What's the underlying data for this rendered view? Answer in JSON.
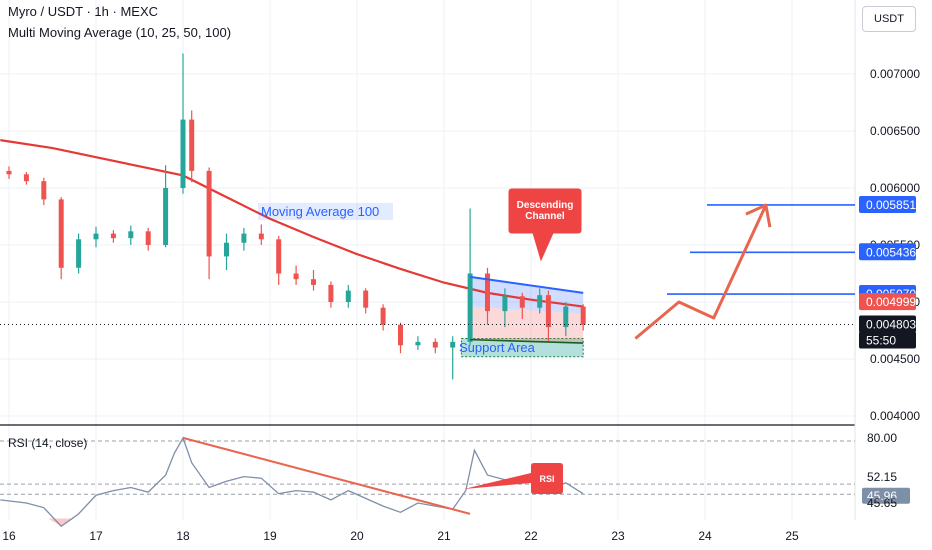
{
  "header": {
    "title": "Myro / USDT · 1h · MEXC",
    "indicator": "Multi Moving Average (10, 25, 50, 100)"
  },
  "currency_button": "USDT",
  "rsi_pane": {
    "label": "RSI (14, close)"
  },
  "colors": {
    "up": "#26a69a",
    "down": "#ef5350",
    "ma": "#e53935",
    "blue": "#2962ff",
    "arrow": "#e8664f",
    "rsi": "#7e8fa8"
  },
  "chart_data": {
    "type": "candlestick",
    "price_axis": {
      "ticks": [
        "0.004000",
        "0.004500",
        "0.005000",
        "0.005500",
        "0.006000",
        "0.006500",
        "0.007000"
      ]
    },
    "x_ticks": [
      "16",
      "17",
      "18",
      "19",
      "20",
      "21",
      "22",
      "23",
      "24",
      "25"
    ],
    "price_labels": [
      {
        "text": "0.005851",
        "value": 0.005851,
        "style": "blue"
      },
      {
        "text": "0.005436",
        "value": 0.005436,
        "style": "blue"
      },
      {
        "text": "0.005070",
        "value": 0.00507,
        "style": "blue"
      },
      {
        "text": "0.004999",
        "value": 0.004999,
        "style": "red"
      },
      {
        "text": "0.004803",
        "value": 0.004803,
        "style": "dark"
      },
      {
        "text": "55:50",
        "value": 0.004718,
        "style": "dark"
      }
    ],
    "horizontal_levels": [
      0.005851,
      0.005436,
      0.00507
    ],
    "annotations": {
      "ma_label": "Moving Average 100",
      "channel_label": "Descending\nChannel",
      "support_label": "Support Area",
      "rsi_tag": "RSI"
    },
    "ma100": [
      [
        15.9,
        0.00642
      ],
      [
        16.5,
        0.00635
      ],
      [
        17.0,
        0.00627
      ],
      [
        17.5,
        0.00619
      ],
      [
        18.0,
        0.00611
      ],
      [
        18.5,
        0.00592
      ],
      [
        19.0,
        0.00573
      ],
      [
        19.5,
        0.00557
      ],
      [
        20.0,
        0.00542
      ],
      [
        20.5,
        0.00529
      ],
      [
        21.0,
        0.00517
      ],
      [
        21.5,
        0.00508
      ],
      [
        22.0,
        0.00502
      ],
      [
        22.6,
        0.00496
      ]
    ],
    "candles_ohlc_by_day": [
      [
        16.0,
        0.00615,
        0.00619,
        0.00608,
        0.00612
      ],
      [
        16.2,
        0.00612,
        0.00614,
        0.00603,
        0.00606
      ],
      [
        16.4,
        0.00606,
        0.00609,
        0.00585,
        0.0059
      ],
      [
        16.6,
        0.0059,
        0.00592,
        0.0052,
        0.0053
      ],
      [
        16.8,
        0.0053,
        0.0056,
        0.00525,
        0.00555
      ],
      [
        17.0,
        0.00555,
        0.00566,
        0.00548,
        0.0056
      ],
      [
        17.2,
        0.0056,
        0.00563,
        0.00552,
        0.00556
      ],
      [
        17.4,
        0.00556,
        0.00567,
        0.0055,
        0.00562
      ],
      [
        17.6,
        0.00562,
        0.00565,
        0.00545,
        0.0055
      ],
      [
        17.8,
        0.0055,
        0.0062,
        0.00548,
        0.006
      ],
      [
        18.0,
        0.006,
        0.00718,
        0.00595,
        0.0066
      ],
      [
        18.1,
        0.0066,
        0.00668,
        0.00605,
        0.00615
      ],
      [
        18.3,
        0.00615,
        0.00618,
        0.0052,
        0.0054
      ],
      [
        18.5,
        0.0054,
        0.0056,
        0.00528,
        0.00552
      ],
      [
        18.7,
        0.00552,
        0.00565,
        0.00545,
        0.0056
      ],
      [
        18.9,
        0.0056,
        0.00568,
        0.0055,
        0.00555
      ],
      [
        19.1,
        0.00555,
        0.00558,
        0.00515,
        0.00525
      ],
      [
        19.3,
        0.00525,
        0.00532,
        0.00515,
        0.0052
      ],
      [
        19.5,
        0.0052,
        0.00528,
        0.0051,
        0.00515
      ],
      [
        19.7,
        0.00515,
        0.00518,
        0.00495,
        0.005
      ],
      [
        19.9,
        0.005,
        0.00515,
        0.00495,
        0.0051
      ],
      [
        20.1,
        0.0051,
        0.00512,
        0.0049,
        0.00495
      ],
      [
        20.3,
        0.00495,
        0.00498,
        0.00475,
        0.0048
      ],
      [
        20.5,
        0.0048,
        0.00482,
        0.00455,
        0.00462
      ],
      [
        20.7,
        0.00462,
        0.0047,
        0.00458,
        0.00465
      ],
      [
        20.9,
        0.00465,
        0.00468,
        0.00455,
        0.0046
      ],
      [
        21.1,
        0.0046,
        0.0047,
        0.00432,
        0.00465
      ],
      [
        21.3,
        0.00465,
        0.00582,
        0.00462,
        0.00525
      ],
      [
        21.5,
        0.00525,
        0.0053,
        0.0048,
        0.00492
      ],
      [
        21.7,
        0.00492,
        0.00512,
        0.00478,
        0.00505
      ],
      [
        21.9,
        0.00505,
        0.00508,
        0.00485,
        0.00495
      ],
      [
        22.1,
        0.00495,
        0.00512,
        0.0049,
        0.00506
      ],
      [
        22.2,
        0.00506,
        0.0051,
        0.00465,
        0.00478
      ],
      [
        22.4,
        0.00478,
        0.005,
        0.0047,
        0.00496
      ],
      [
        22.6,
        0.00496,
        0.00498,
        0.00475,
        0.0048
      ]
    ],
    "descending_channel": {
      "upper": [
        [
          21.3,
          0.00522
        ],
        [
          22.6,
          0.00508
        ]
      ],
      "lower": [
        [
          21.3,
          0.00467
        ],
        [
          22.6,
          0.00464
        ]
      ]
    },
    "support_area": {
      "x": [
        21.2,
        22.6
      ],
      "y": [
        0.00452,
        0.00468
      ]
    },
    "projection_path": [
      [
        23.2,
        0.00468
      ],
      [
        23.7,
        0.005
      ],
      [
        24.1,
        0.00486
      ],
      [
        24.7,
        0.00585
      ]
    ],
    "rsi": {
      "ticks": [
        "80.00",
        "52.15",
        "45.96",
        "45.65"
      ],
      "levels": [
        80.0,
        52.15,
        45.65
      ],
      "value": 45.96,
      "series": [
        [
          15.9,
          42
        ],
        [
          16.2,
          40
        ],
        [
          16.4,
          37
        ],
        [
          16.6,
          25
        ],
        [
          16.8,
          33
        ],
        [
          17.0,
          45
        ],
        [
          17.2,
          48
        ],
        [
          17.4,
          50
        ],
        [
          17.6,
          47
        ],
        [
          17.8,
          58
        ],
        [
          17.9,
          72
        ],
        [
          18.0,
          82
        ],
        [
          18.1,
          66
        ],
        [
          18.3,
          50
        ],
        [
          18.5,
          54
        ],
        [
          18.7,
          57
        ],
        [
          18.9,
          56
        ],
        [
          19.1,
          46
        ],
        [
          19.3,
          48
        ],
        [
          19.5,
          47
        ],
        [
          19.7,
          42
        ],
        [
          19.9,
          48
        ],
        [
          20.1,
          43
        ],
        [
          20.3,
          38
        ],
        [
          20.5,
          34
        ],
        [
          20.7,
          40
        ],
        [
          20.9,
          38
        ],
        [
          21.1,
          36
        ],
        [
          21.25,
          48
        ],
        [
          21.35,
          74
        ],
        [
          21.5,
          58
        ],
        [
          21.7,
          55
        ],
        [
          21.9,
          56
        ],
        [
          22.1,
          57
        ],
        [
          22.2,
          49
        ],
        [
          22.4,
          53
        ],
        [
          22.6,
          46
        ]
      ],
      "trendline": [
        [
          18.0,
          82
        ],
        [
          21.3,
          33
        ]
      ]
    }
  }
}
